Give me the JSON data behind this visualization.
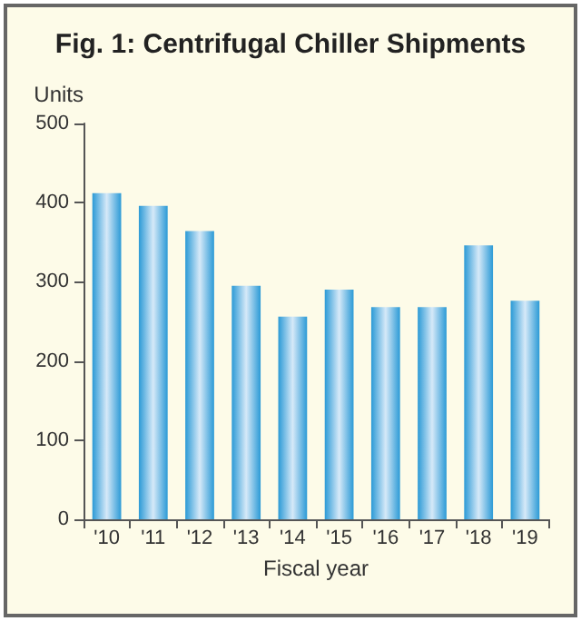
{
  "chart_data": {
    "type": "bar",
    "title": "Fig. 1: Centrifugal Chiller Shipments",
    "ylabel": "Units",
    "xlabel": "Fiscal year",
    "categories": [
      "'10",
      "'11",
      "'12",
      "'13",
      "'14",
      "'15",
      "'16",
      "'17",
      "'18",
      "'19"
    ],
    "values": [
      412,
      396,
      364,
      295,
      256,
      290,
      268,
      268,
      346,
      276
    ],
    "color": "#2b9ad6",
    "ylim": [
      0,
      500
    ],
    "yticks": [
      0,
      100,
      200,
      300,
      400,
      500
    ],
    "grid": false
  }
}
